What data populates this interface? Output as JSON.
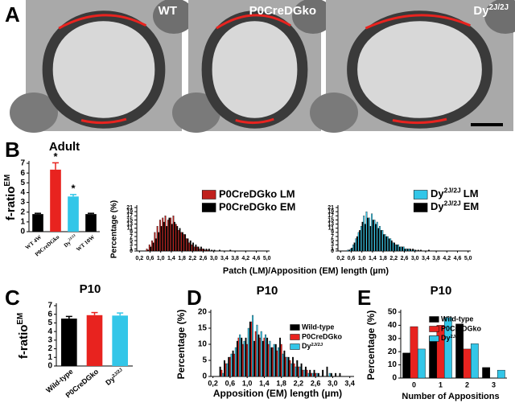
{
  "panel_labels": [
    "A",
    "B",
    "C",
    "D",
    "E"
  ],
  "micrographs": [
    {
      "label": "WT"
    },
    {
      "label": "P0CreDGko"
    },
    {
      "label": {
        "text": "Dy",
        "sup": "2J/2J"
      }
    }
  ],
  "chart_data": [
    {
      "type": "bar",
      "title": "Adult",
      "ylabel": {
        "text": "f-ratio",
        "sup": "EM"
      },
      "categories": [
        "WT 4W",
        "P0CreDGko",
        {
          "text": "Dy",
          "sup": "2J/2J"
        },
        "WT 10W"
      ],
      "values": [
        1.8,
        6.35,
        3.6,
        1.8
      ],
      "errors": [
        0.08,
        0.7,
        0.2,
        0.08
      ],
      "colors": [
        "#000000",
        "#e8231f",
        "#33c6e8",
        "#000000"
      ],
      "annotations": [
        {
          "x": "P0CreDGko",
          "text": "*"
        },
        {
          "x": {
            "text": "Dy",
            "sup": "2J/2J"
          },
          "text": "*"
        }
      ],
      "ylim": [
        0,
        7
      ],
      "yticks": [
        0,
        1,
        2,
        3,
        4,
        5,
        6,
        7
      ]
    },
    {
      "type": "bar",
      "ylabel": "Percentage (%)",
      "xlabel": "Patch (LM)/Apposition (EM) length (µm)",
      "x": [
        0.5,
        0.6,
        0.7,
        0.8,
        0.9,
        1.0,
        1.1,
        1.2,
        1.3,
        1.4,
        1.5,
        1.6,
        1.7,
        1.8,
        1.9,
        2.0,
        2.1,
        2.2,
        2.3,
        2.4,
        2.5,
        2.6,
        2.7,
        2.8,
        2.9,
        3.0,
        3.1,
        3.2,
        3.3,
        3.4,
        3.5,
        3.6
      ],
      "series": [
        {
          "name": "P0CreDGko LM",
          "color": "#c0201c",
          "values": [
            1,
            3,
            5,
            9,
            12,
            15,
            16,
            17,
            15,
            16,
            17,
            13,
            10,
            9,
            8,
            6,
            4,
            3,
            2,
            2,
            1,
            1,
            0.5,
            0.5,
            0,
            0,
            0,
            0,
            0,
            0,
            0,
            0
          ]
        },
        {
          "name": "P0CreDGko EM",
          "color": "#000000",
          "values": [
            0.5,
            2,
            4,
            6,
            9,
            12,
            14,
            12,
            16,
            13,
            14,
            12,
            11,
            9,
            8,
            6,
            5,
            4,
            3,
            2,
            2,
            1,
            1,
            1,
            0.5,
            0.5,
            0,
            0.5,
            0,
            0,
            0,
            0.5
          ]
        }
      ],
      "xlim": [
        0.1,
        5.1
      ],
      "xticks": [
        {
          "value": 0.2,
          "label": "0,2"
        },
        {
          "value": 0.6,
          "label": "0,6"
        },
        {
          "value": 1.0,
          "label": "1,0"
        },
        {
          "value": 1.4,
          "label": "1,4"
        },
        {
          "value": 1.8,
          "label": "1,8"
        },
        {
          "value": 2.2,
          "label": "2,2"
        },
        {
          "value": 2.6,
          "label": "2,6"
        },
        {
          "value": 3.0,
          "label": "3,0"
        },
        {
          "value": 3.4,
          "label": "3,4"
        },
        {
          "value": 3.8,
          "label": "3,8"
        },
        {
          "value": 4.2,
          "label": "4,2"
        },
        {
          "value": 4.6,
          "label": "4,6"
        },
        {
          "value": 5.0,
          "label": "5,0"
        }
      ],
      "ylim": [
        0,
        21
      ],
      "yticks": [
        0,
        1,
        3,
        5,
        7,
        9,
        11,
        13,
        15,
        17,
        19,
        21
      ]
    },
    {
      "type": "bar",
      "x": [
        0.5,
        0.6,
        0.7,
        0.8,
        0.9,
        1.0,
        1.1,
        1.2,
        1.3,
        1.4,
        1.5,
        1.6,
        1.7,
        1.8,
        1.9,
        2.0,
        2.1,
        2.2,
        2.3,
        2.4,
        2.5,
        2.6,
        2.7,
        2.8,
        2.9,
        3.0,
        3.1,
        3.2,
        3.3,
        3.4,
        3.5,
        3.6
      ],
      "series": [
        {
          "name": {
            "text": "Dy",
            "sup": "2J/2J",
            "tail": "LM"
          },
          "color": "#33c6e8",
          "values": [
            0.5,
            1,
            3,
            6,
            9,
            12,
            17,
            19,
            16,
            18,
            15,
            14,
            12,
            10,
            8,
            7,
            6,
            4,
            3,
            3,
            2,
            2,
            1,
            1,
            0.5,
            0.5,
            0,
            0,
            0,
            0,
            0,
            0
          ]
        },
        {
          "name": {
            "text": "Dy",
            "sup": "2J/2J",
            "tail": "EM"
          },
          "color": "#000000",
          "values": [
            0.5,
            1.5,
            4,
            7,
            10,
            14,
            13,
            16,
            12,
            15,
            13,
            11,
            10,
            8,
            7,
            6,
            5,
            4,
            3,
            2,
            2,
            1,
            1,
            1,
            1,
            0.5,
            0.5,
            0.5,
            0,
            0,
            0.5,
            0
          ]
        }
      ],
      "xlim": [
        0.1,
        5.1
      ],
      "xticks": [
        {
          "value": 0.2,
          "label": "0,2"
        },
        {
          "value": 0.6,
          "label": "0,6"
        },
        {
          "value": 1.0,
          "label": "1,0"
        },
        {
          "value": 1.4,
          "label": "1,4"
        },
        {
          "value": 1.8,
          "label": "1,8"
        },
        {
          "value": 2.2,
          "label": "2,2"
        },
        {
          "value": 2.6,
          "label": "2,6"
        },
        {
          "value": 3.0,
          "label": "3,0"
        },
        {
          "value": 3.4,
          "label": "3,4"
        },
        {
          "value": 3.8,
          "label": "3,8"
        },
        {
          "value": 4.2,
          "label": "4,2"
        },
        {
          "value": 4.6,
          "label": "4,6"
        },
        {
          "value": 5.0,
          "label": "5,0"
        }
      ],
      "ylim": [
        0,
        21
      ],
      "yticks": [
        0,
        1,
        3,
        5,
        7,
        9,
        11,
        13,
        15,
        17,
        19,
        21
      ]
    },
    {
      "type": "bar",
      "title": "P10",
      "ylabel": {
        "text": "f-ratio",
        "sup": "EM"
      },
      "categories": [
        "Wild-type",
        "P0CreDGko",
        {
          "text": "Dy",
          "sup": "2J/2J"
        }
      ],
      "values": [
        5.5,
        5.9,
        5.85
      ],
      "errors": [
        0.25,
        0.3,
        0.3
      ],
      "colors": [
        "#000000",
        "#e8231f",
        "#33c6e8"
      ],
      "ylim": [
        0,
        7
      ],
      "yticks": [
        0,
        1,
        2,
        3,
        4,
        5,
        6,
        7
      ]
    },
    {
      "type": "bar",
      "title": "P10",
      "ylabel": "Percentage (%)",
      "xlabel": "Apposition (EM) length (µm)",
      "x": [
        0.3,
        0.4,
        0.5,
        0.6,
        0.7,
        0.8,
        0.9,
        1.0,
        1.1,
        1.2,
        1.3,
        1.4,
        1.5,
        1.6,
        1.7,
        1.8,
        1.9,
        2.0,
        2.1,
        2.2,
        2.3,
        2.4,
        2.5,
        2.6,
        2.7,
        2.8,
        2.9,
        3.0,
        3.1,
        3.2,
        3.3
      ],
      "series": [
        {
          "name": "Wild-type",
          "color": "#000000",
          "values": [
            0,
            3,
            5,
            6,
            8,
            11,
            12,
            12,
            17,
            11,
            13,
            11,
            12,
            9,
            10,
            12,
            8,
            6,
            6,
            5,
            4,
            3,
            2,
            2,
            1,
            2,
            3,
            1,
            1,
            1,
            0
          ]
        },
        {
          "name": "P0CreDGko",
          "color": "#e8231f",
          "values": [
            0,
            2,
            4,
            6,
            7,
            12,
            10,
            10,
            17,
            14,
            12,
            12,
            10,
            9,
            8,
            10,
            6,
            5,
            4,
            3,
            2,
            2,
            1,
            1,
            0,
            0,
            0,
            0,
            0,
            0,
            0
          ]
        },
        {
          "name": {
            "text": "Dy",
            "sup": "2J/2J"
          },
          "color": "#33c6e8",
          "values": [
            0,
            1,
            4,
            7,
            9,
            13,
            11,
            15,
            19,
            16,
            14,
            13,
            11,
            10,
            9,
            7,
            6,
            4,
            3,
            3,
            2,
            1,
            1,
            1,
            0,
            0,
            1,
            0,
            0,
            0,
            0
          ]
        }
      ],
      "xlim": [
        0.15,
        3.5
      ],
      "xticks": [
        {
          "value": 0.2,
          "label": "0,2"
        },
        {
          "value": 0.6,
          "label": "0,6"
        },
        {
          "value": 1.0,
          "label": "1,0"
        },
        {
          "value": 1.4,
          "label": "1,4"
        },
        {
          "value": 1.8,
          "label": "1,8"
        },
        {
          "value": 2.2,
          "label": "2,2"
        },
        {
          "value": 2.6,
          "label": "2,6"
        },
        {
          "value": 3.0,
          "label": "3,0"
        },
        {
          "value": 3.4,
          "label": "3,4"
        }
      ],
      "ylim": [
        0,
        20
      ],
      "yticks": [
        0,
        5,
        10,
        15,
        20
      ]
    },
    {
      "type": "bar",
      "title": "P10",
      "ylabel": "Percentage (%)",
      "xlabel": "Number of Appositions",
      "categories": [
        "0",
        "1",
        "2",
        "3"
      ],
      "series": [
        {
          "name": "Wild-type",
          "color": "#000000",
          "values": [
            19,
            32,
            41,
            8
          ]
        },
        {
          "name": "P0CreDGko",
          "color": "#e8231f",
          "values": [
            39,
            40,
            22,
            0
          ]
        },
        {
          "name": {
            "text": "Dy",
            "sup": "2J/2J"
          },
          "color": "#33c6e8",
          "values": [
            22,
            46,
            26,
            6
          ]
        }
      ],
      "ylim": [
        0,
        50
      ],
      "yticks": [
        0,
        10,
        20,
        30,
        40,
        50
      ]
    }
  ]
}
